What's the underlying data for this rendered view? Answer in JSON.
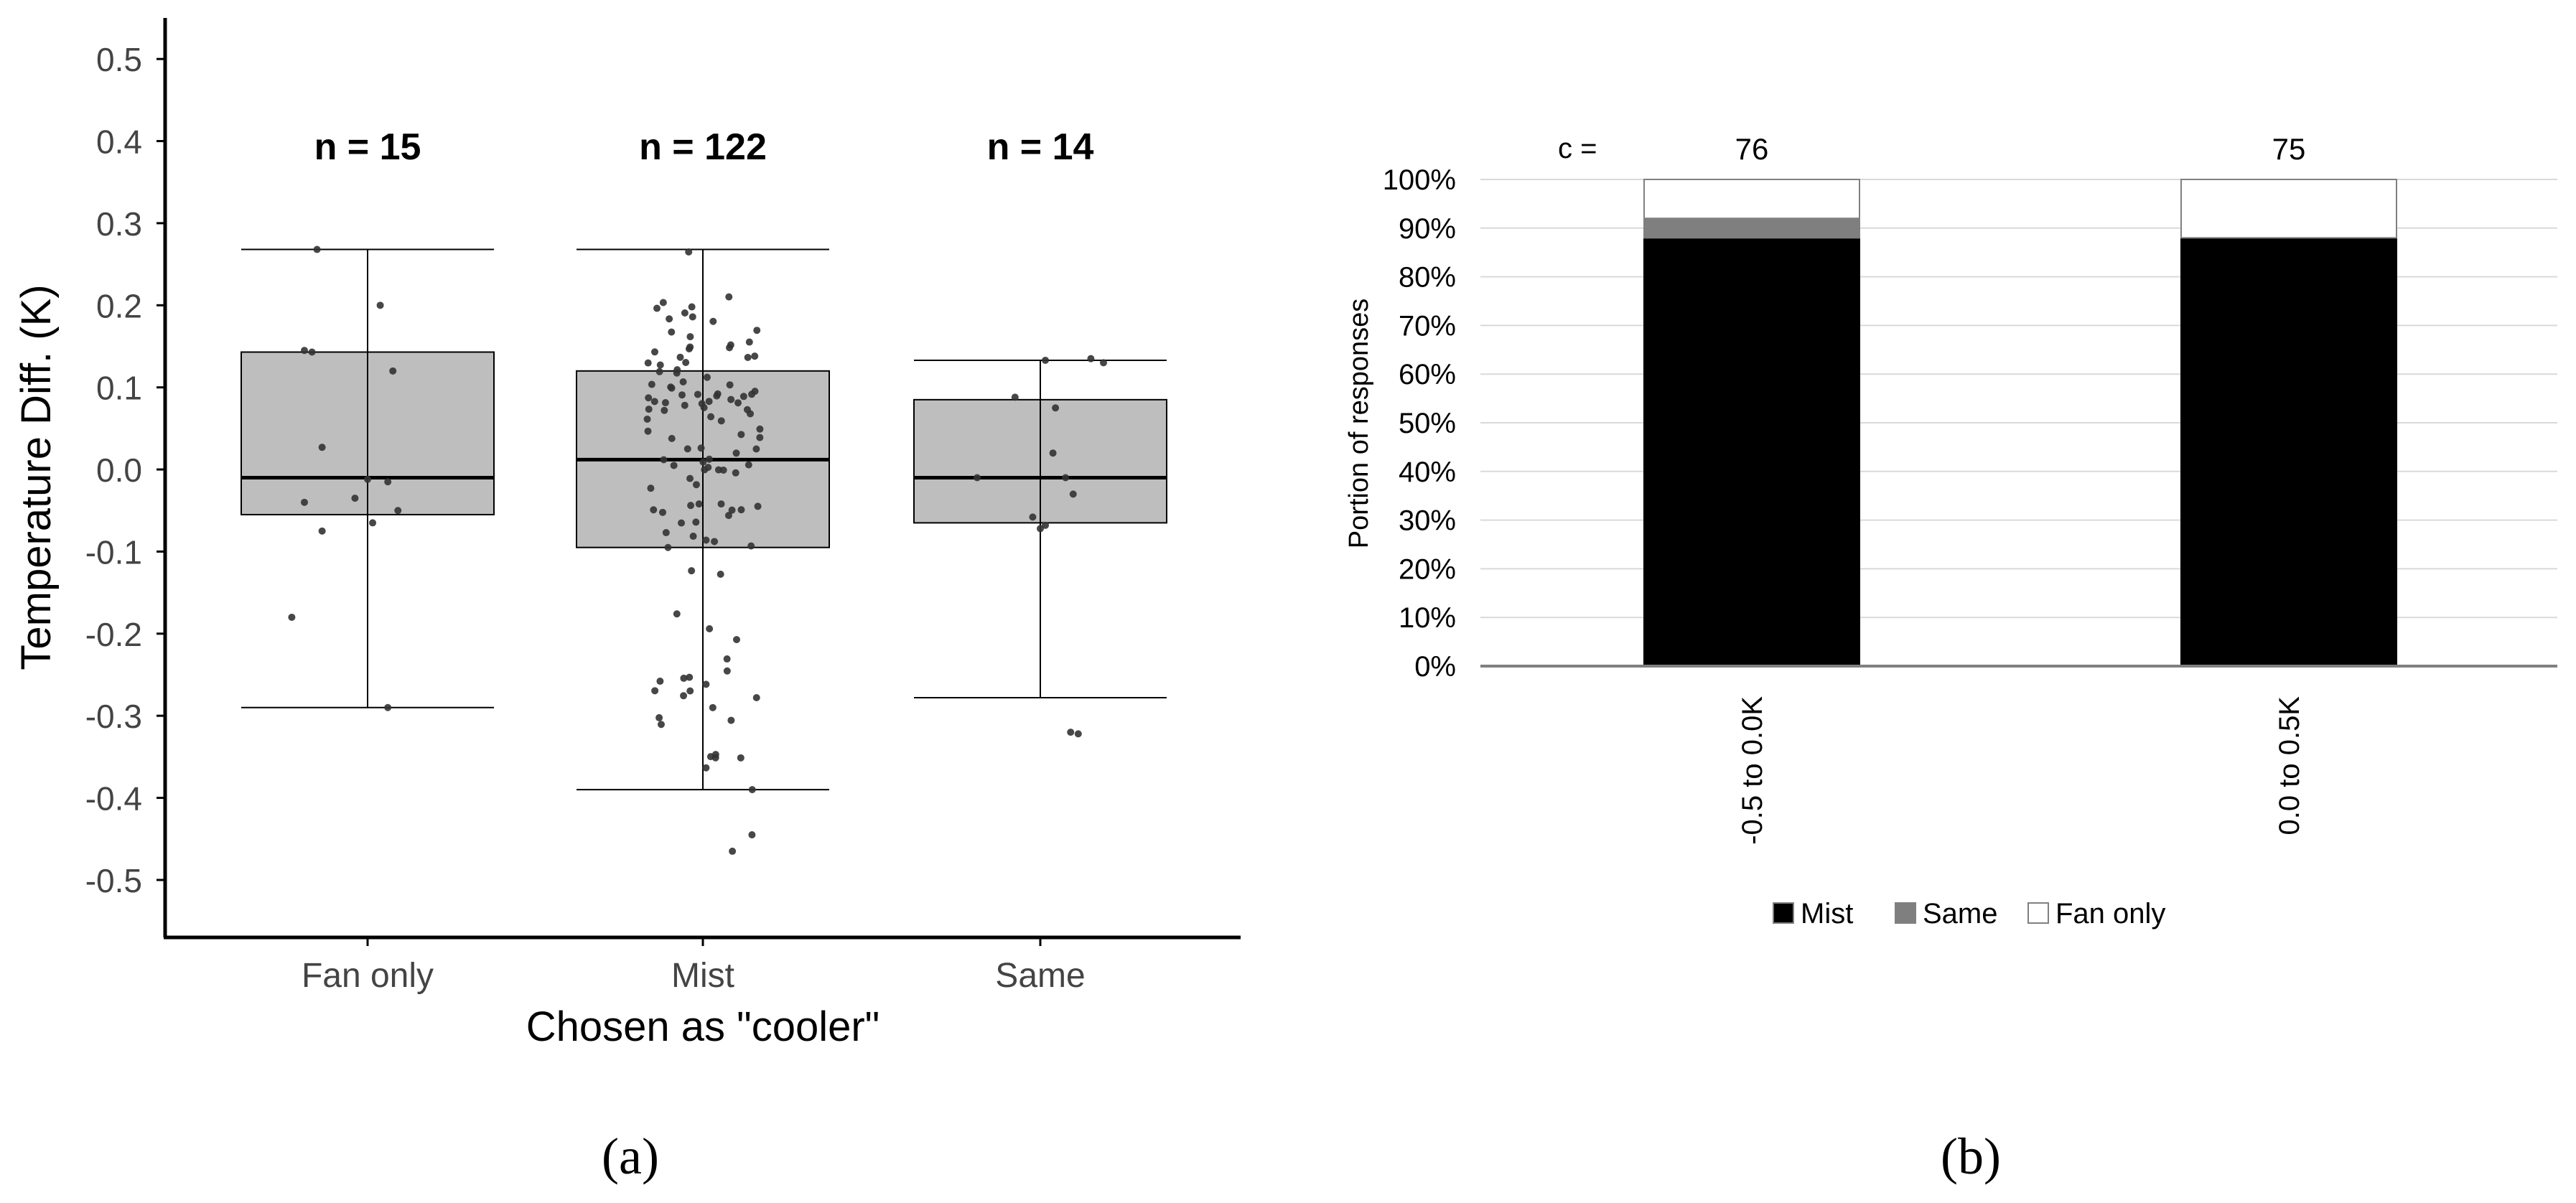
{
  "chart_data": [
    {
      "type": "box",
      "panel_label": "(a)",
      "xlabel": "Chosen as \"cooler\"",
      "ylabel": "Temperature Diff. (K)",
      "ylim": [
        -0.57,
        0.55
      ],
      "yticks": [
        "0.5",
        "0.4",
        "0.3",
        "0.2",
        "0.1",
        "0.0",
        "-0.1",
        "-0.2",
        "-0.3",
        "-0.4",
        "-0.5"
      ],
      "ytick_values": [
        0.5,
        0.4,
        0.3,
        0.2,
        0.1,
        0.0,
        -0.1,
        -0.2,
        -0.3,
        -0.4,
        -0.5
      ],
      "grid": false,
      "box_color": "#bebebe",
      "point_color": "#333333",
      "groups": [
        {
          "name": "Fan only",
          "n_label": "n = 15",
          "q1": -0.055,
          "median": -0.01,
          "q3": 0.143,
          "whisker_low": -0.29,
          "whisker_high": 0.268,
          "points": [
            {
              "x": -0.2,
              "y": 0.268
            },
            {
              "x": 0.05,
              "y": 0.2
            },
            {
              "x": 0.1,
              "y": 0.12
            },
            {
              "x": -0.22,
              "y": 0.143
            },
            {
              "x": -0.25,
              "y": 0.145
            },
            {
              "x": -0.18,
              "y": 0.027
            },
            {
              "x": 0.0,
              "y": -0.012
            },
            {
              "x": 0.08,
              "y": -0.015
            },
            {
              "x": -0.05,
              "y": -0.035
            },
            {
              "x": -0.25,
              "y": -0.04
            },
            {
              "x": 0.12,
              "y": -0.05
            },
            {
              "x": 0.02,
              "y": -0.065
            },
            {
              "x": -0.18,
              "y": -0.075
            },
            {
              "x": -0.3,
              "y": -0.18
            },
            {
              "x": 0.08,
              "y": -0.29
            }
          ]
        },
        {
          "name": "Mist",
          "n_label": "n = 122",
          "q1": -0.095,
          "median": 0.012,
          "q3": 0.12,
          "whisker_low": -0.39,
          "whisker_high": 0.268,
          "points": []
        },
        {
          "name": "Same",
          "n_label": "n = 14",
          "q1": -0.065,
          "median": -0.01,
          "q3": 0.085,
          "whisker_low": -0.278,
          "whisker_high": 0.133,
          "points": [
            {
              "x": 0.02,
              "y": 0.133
            },
            {
              "x": 0.2,
              "y": 0.135
            },
            {
              "x": 0.25,
              "y": 0.13
            },
            {
              "x": -0.1,
              "y": 0.088
            },
            {
              "x": 0.06,
              "y": 0.075
            },
            {
              "x": -0.25,
              "y": -0.01
            },
            {
              "x": 0.05,
              "y": 0.02
            },
            {
              "x": 0.1,
              "y": -0.01
            },
            {
              "x": 0.13,
              "y": -0.03
            },
            {
              "x": -0.03,
              "y": -0.058
            },
            {
              "x": 0.02,
              "y": -0.068
            },
            {
              "x": 0.0,
              "y": -0.072
            },
            {
              "x": 0.12,
              "y": -0.32
            },
            {
              "x": 0.15,
              "y": -0.322
            }
          ]
        }
      ]
    },
    {
      "type": "stacked-bar",
      "panel_label": "(b)",
      "ylabel": "Portion of responses",
      "ylim": [
        0,
        100
      ],
      "yticks": [
        "0%",
        "10%",
        "20%",
        "30%",
        "40%",
        "50%",
        "60%",
        "70%",
        "80%",
        "90%",
        "100%"
      ],
      "count_prefix": "c =",
      "categories": [
        "-0.5 to 0.0K",
        "0.0 to 0.5K"
      ],
      "counts": [
        "76",
        "75"
      ],
      "series": [
        {
          "name": "Mist",
          "color": "#000000",
          "values": [
            88,
            88
          ]
        },
        {
          "name": "Same",
          "color": "#7f7f7f",
          "values": [
            4,
            0
          ]
        },
        {
          "name": "Fan only",
          "color": "#ffffff",
          "values": [
            8,
            12
          ]
        }
      ],
      "grid": true,
      "legend_position": "bottom"
    }
  ]
}
